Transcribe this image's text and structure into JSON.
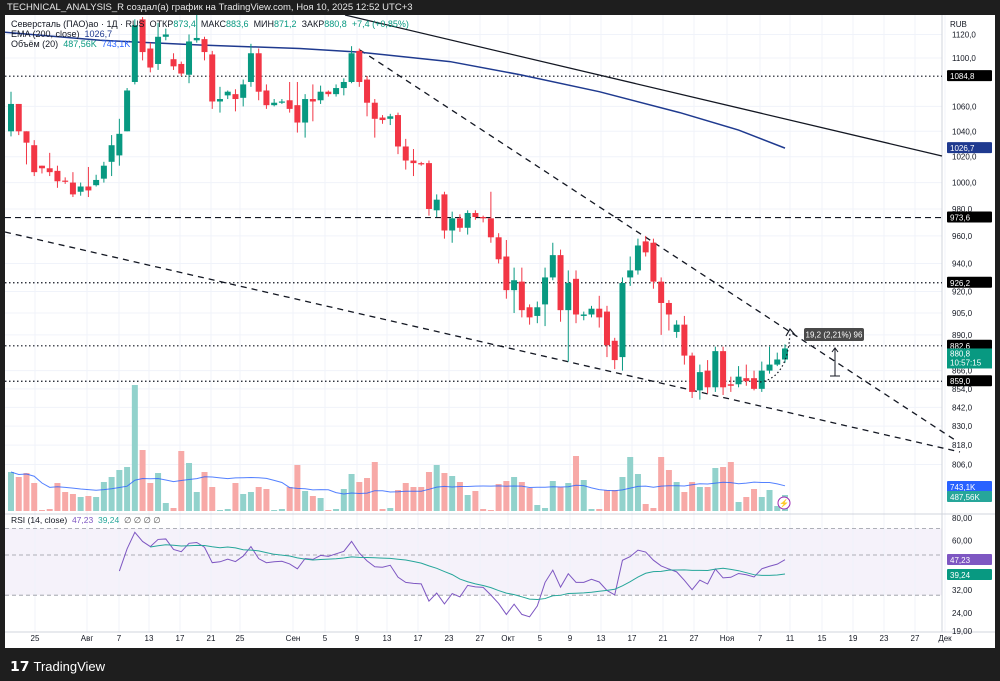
{
  "topbar": {
    "text": "TECHNICAL_ANALYSIS_R создал(а) график на TradingView.com, Ноя 10, 2025 12:52 UTC+3"
  },
  "legend": {
    "symbol": "Северсталь (ПАО)ао · 1Д · RUS",
    "open_label": "ОТКР",
    "open": "873,4",
    "high_label": "МАКС",
    "high": "883,6",
    "low_label": "МИН",
    "low": "871,2",
    "close_label": "ЗАКР",
    "close": "880,8",
    "change": "+7,4 (+0,85%)",
    "ema_label": "EMA (200, close)",
    "ema_value": "1026,7",
    "vol_label": "Объём (20)",
    "vol_value1": "487,56K",
    "vol_value2": "743,1K",
    "rsi_label": "RSI (14, close)",
    "rsi_value": "47,23",
    "rsi_ma_value": "39,24",
    "rsi_extra": "∅ ∅ ∅ ∅"
  },
  "currency": "RUB",
  "price_ticks": [
    "1120,0",
    "1100,0",
    "1060,0",
    "1040,0",
    "1020,0",
    "1000,0",
    "980,0",
    "960,0",
    "940,0",
    "920,0",
    "905,0",
    "890,0",
    "866,0",
    "854,0",
    "842,0",
    "830,0",
    "818,0",
    "806,0"
  ],
  "price_tick_values": [
    1120,
    1100,
    1060,
    1040,
    1020,
    1000,
    980,
    960,
    940,
    920,
    905,
    890,
    866,
    854,
    842,
    830,
    818,
    806
  ],
  "levels": [
    {
      "value": 1084.8,
      "label": "1084,8",
      "style": "dotted"
    },
    {
      "value": 973.6,
      "label": "973,6",
      "style": "dashed"
    },
    {
      "value": 926.2,
      "label": "926,2",
      "style": "dotted"
    },
    {
      "value": 882.6,
      "label": "882,6",
      "style": "dotted"
    },
    {
      "value": 859.0,
      "label": "859,0",
      "style": "dotted"
    }
  ],
  "ema_tag": {
    "value": 1026.7,
    "label": "1026,7"
  },
  "last_price": {
    "value": 880.8,
    "label": "880,8",
    "countdown": "10:57:15"
  },
  "vol_tags": {
    "ma": "743,1K",
    "vol": "487,56K"
  },
  "rsi_ticks": [
    "80,00",
    "60,00",
    "32,00",
    "24,00",
    "19,00"
  ],
  "rsi_tick_values": [
    80,
    60,
    32,
    24,
    19
  ],
  "rsi_tags": {
    "rsi": "47,23",
    "ma": "39,24"
  },
  "measure": {
    "label": "19,2 (2,21%) 96"
  },
  "time_labels": [
    "25",
    "Авг",
    "7",
    "13",
    "17",
    "21",
    "25",
    "Сен",
    "5",
    "9",
    "13",
    "17",
    "23",
    "27",
    "Окт",
    "5",
    "9",
    "13",
    "17",
    "21",
    "27",
    "Ноя",
    "7",
    "11",
    "15",
    "19",
    "23",
    "27",
    "Дек"
  ],
  "footer": {
    "brand": "TradingView"
  },
  "colors": {
    "up": "#089981",
    "down": "#f23645",
    "ema": "#1f3a8f",
    "vol_up": "#92d2cc",
    "vol_down": "#f7a9a7",
    "vol_ma": "#2962ff",
    "rsi": "#7e57c2",
    "rsi_ma": "#26a69a"
  },
  "chart_data": {
    "type": "candlestick",
    "title": "Северсталь (ПАО)ао · 1Д",
    "ohlc": [
      [
        1040,
        1072,
        1036,
        1062
      ],
      [
        1062,
        1062,
        1037,
        1040
      ],
      [
        1040,
        1040,
        1014,
        1031
      ],
      [
        1029,
        1033,
        1005,
        1008
      ],
      [
        1013,
        1013,
        1007,
        1011
      ],
      [
        1011,
        1023,
        1005,
        1008
      ],
      [
        1009,
        1013,
        996,
        1001
      ],
      [
        1001.5,
        1004,
        999,
        1001
      ],
      [
        1000,
        1008,
        989,
        991
      ],
      [
        993,
        1000,
        990,
        997
      ],
      [
        997,
        1012,
        989,
        994
      ],
      [
        998,
        1006,
        997,
        1002
      ],
      [
        1003,
        1016,
        1000,
        1013
      ],
      [
        1016,
        1037,
        1005,
        1029
      ],
      [
        1021,
        1050,
        1013,
        1038
      ],
      [
        1040,
        1075,
        1040,
        1073
      ],
      [
        1080,
        1133,
        1078,
        1128
      ],
      [
        1133,
        1135,
        1098,
        1105
      ],
      [
        1108,
        1113,
        1088,
        1092
      ],
      [
        1095,
        1130,
        1090,
        1118
      ],
      [
        1118,
        1125,
        1115,
        1120
      ],
      [
        1099,
        1104,
        1090,
        1093
      ],
      [
        1095,
        1097,
        1085,
        1087
      ],
      [
        1086,
        1120,
        1079,
        1114
      ],
      [
        1115,
        1140,
        1113,
        1117
      ],
      [
        1116,
        1118,
        1098,
        1105
      ],
      [
        1103,
        1106,
        1058,
        1064
      ],
      [
        1064,
        1076,
        1055,
        1066
      ],
      [
        1069,
        1073,
        1066,
        1072
      ],
      [
        1070,
        1074,
        1056,
        1066
      ],
      [
        1067,
        1082,
        1060,
        1078
      ],
      [
        1080,
        1112,
        1076,
        1104
      ],
      [
        1104,
        1108,
        1065,
        1072
      ],
      [
        1073,
        1078,
        1058,
        1061
      ],
      [
        1061,
        1066,
        1060,
        1063
      ],
      [
        1063,
        1066,
        1062,
        1064
      ],
      [
        1065,
        1080,
        1055,
        1058
      ],
      [
        1061,
        1080,
        1039,
        1047
      ],
      [
        1047,
        1070,
        1035,
        1066
      ],
      [
        1066,
        1078,
        1048,
        1064
      ],
      [
        1065,
        1077,
        1062,
        1072
      ],
      [
        1072,
        1073,
        1068,
        1070
      ],
      [
        1070,
        1078,
        1068,
        1075
      ],
      [
        1075,
        1083,
        1069,
        1080
      ],
      [
        1080,
        1110,
        1079,
        1104
      ],
      [
        1106,
        1108,
        1076,
        1080
      ],
      [
        1082,
        1085,
        1052,
        1063
      ],
      [
        1063,
        1066,
        1035,
        1050
      ],
      [
        1051,
        1053,
        1046,
        1049
      ],
      [
        1050,
        1054,
        1045,
        1052
      ],
      [
        1053,
        1055,
        1022,
        1028
      ],
      [
        1028,
        1034,
        1010,
        1017
      ],
      [
        1017,
        1026,
        1005,
        1015
      ],
      [
        1015,
        1016,
        1013,
        1014
      ],
      [
        1015,
        1017,
        975,
        980
      ],
      [
        979,
        991,
        974,
        987
      ],
      [
        991,
        993,
        958,
        964
      ],
      [
        964,
        978,
        955,
        973
      ],
      [
        973,
        976,
        963,
        966
      ],
      [
        966,
        979,
        961,
        977
      ],
      [
        977,
        979,
        972,
        974
      ],
      [
        974,
        975,
        970,
        973
      ],
      [
        973,
        993,
        955,
        959
      ],
      [
        959,
        962,
        940,
        943
      ],
      [
        945,
        957,
        915,
        921
      ],
      [
        921,
        937,
        905,
        928
      ],
      [
        927,
        937,
        902,
        907
      ],
      [
        909,
        911,
        897,
        902
      ],
      [
        903,
        913,
        898,
        909
      ],
      [
        911,
        937,
        896,
        930
      ],
      [
        930,
        955,
        928,
        946
      ],
      [
        946,
        950,
        899,
        907
      ],
      [
        907,
        935,
        872,
        926
      ],
      [
        929,
        935,
        898,
        904
      ],
      [
        903,
        906,
        900,
        904
      ],
      [
        904,
        910,
        902,
        908
      ],
      [
        908,
        917,
        895,
        902
      ],
      [
        906,
        910,
        875,
        883
      ],
      [
        886,
        888,
        867,
        873
      ],
      [
        875,
        930,
        866,
        926
      ],
      [
        930,
        945,
        924,
        935
      ],
      [
        935,
        958,
        932,
        953
      ],
      [
        956,
        960,
        945,
        948
      ],
      [
        955,
        958,
        922,
        927
      ],
      [
        927,
        930,
        890,
        912
      ],
      [
        912,
        914,
        893,
        904
      ],
      [
        892,
        900,
        888,
        897
      ],
      [
        897,
        903,
        870,
        876
      ],
      [
        876,
        878,
        848,
        852
      ],
      [
        853,
        870,
        847,
        865
      ],
      [
        866,
        873,
        851,
        855
      ],
      [
        855,
        882,
        852,
        879
      ],
      [
        879,
        882,
        850,
        855
      ],
      [
        857,
        862,
        852,
        856
      ],
      [
        857,
        869,
        855,
        862
      ],
      [
        861,
        870,
        856,
        859
      ],
      [
        861,
        866,
        853,
        854
      ],
      [
        854,
        872,
        852,
        866
      ],
      [
        866,
        882,
        864,
        870
      ],
      [
        870,
        878,
        869,
        873.4
      ],
      [
        873.4,
        883.6,
        871.2,
        880.8
      ]
    ],
    "volume_k": [
      1170,
      1020,
      1140,
      840,
      30,
      60,
      840,
      570,
      510,
      420,
      450,
      420,
      870,
      1020,
      1230,
      1320,
      3780,
      1830,
      840,
      1140,
      240,
      90,
      1800,
      1440,
      570,
      1170,
      720,
      30,
      60,
      840,
      510,
      570,
      720,
      660,
      30,
      60,
      720,
      1380,
      600,
      450,
      390,
      30,
      60,
      660,
      1110,
      870,
      990,
      1470,
      60,
      90,
      630,
      840,
      720,
      720,
      1170,
      1380,
      1140,
      1050,
      870,
      480,
      600,
      60,
      30,
      810,
      900,
      1020,
      870,
      690,
      180,
      90,
      900,
      720,
      840,
      1650,
      930,
      60,
      60,
      630,
      630,
      1020,
      1620,
      1110,
      210,
      90,
      1620,
      1230,
      870,
      570,
      870,
      720,
      720,
      1290,
      1320,
      1470,
      270,
      420,
      660,
      420,
      630,
      150,
      480
    ],
    "ema_200": [
      [
        -1,
        1122
      ],
      [
        11.5,
        1115
      ],
      [
        24.4,
        1111
      ],
      [
        37.3,
        1108
      ],
      [
        45,
        1105
      ],
      [
        56.7,
        1097
      ],
      [
        65.8,
        1086
      ],
      [
        76,
        1072
      ],
      [
        86.4,
        1055
      ],
      [
        94,
        1041
      ],
      [
        100,
        1026.7
      ]
    ],
    "price_scale": "log",
    "ylim": [
      800,
      1125
    ],
    "rsi_ylim": [
      19,
      80
    ]
  }
}
